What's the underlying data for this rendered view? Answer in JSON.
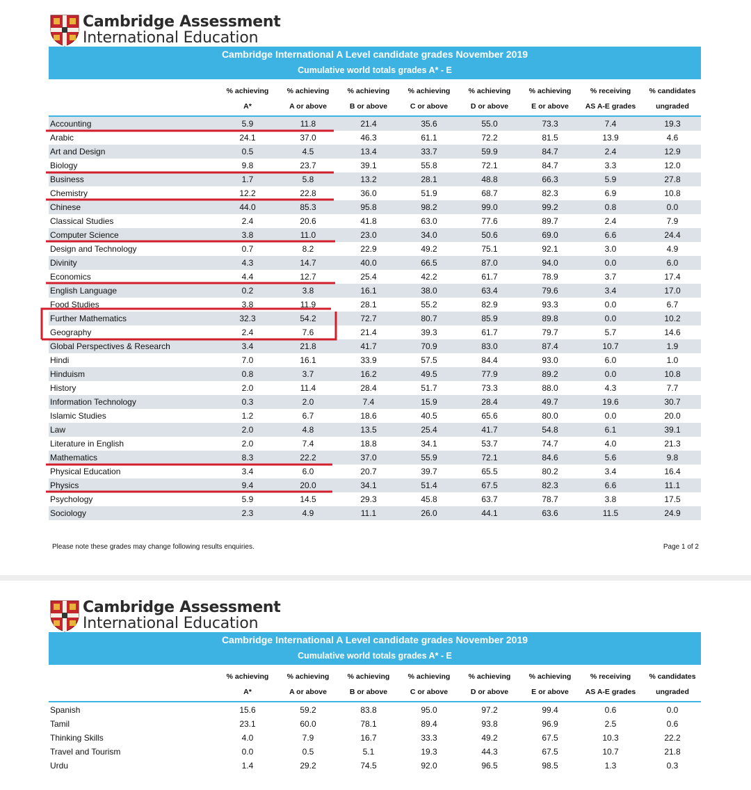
{
  "pages": [
    {
      "logo": {
        "line1": "Cambridge Assessment",
        "line2": "International Education"
      },
      "title": "Cambridge International A Level candidate grades November 2019",
      "subtitle": "Cumulative world totals grades A* - E",
      "headers": [
        [
          "% achieving",
          "A*"
        ],
        [
          "% achieving",
          "A or above"
        ],
        [
          "% achieving",
          "B or above"
        ],
        [
          "% achieving",
          "C or above"
        ],
        [
          "% achieving",
          "D or above"
        ],
        [
          "% achieving",
          "E or above"
        ],
        [
          "% receiving",
          "AS A-E grades"
        ],
        [
          "% candidates",
          "ungraded"
        ]
      ],
      "rows": [
        [
          "Accounting",
          "5.9",
          "11.8",
          "21.4",
          "35.6",
          "55.0",
          "73.3",
          "7.4",
          "19.3"
        ],
        [
          "Arabic",
          "24.1",
          "37.0",
          "46.3",
          "61.1",
          "72.2",
          "81.5",
          "13.9",
          "4.6"
        ],
        [
          "Art and Design",
          "0.5",
          "4.5",
          "13.4",
          "33.7",
          "59.9",
          "84.7",
          "2.4",
          "12.9"
        ],
        [
          "Biology",
          "9.8",
          "23.7",
          "39.1",
          "55.8",
          "72.1",
          "84.7",
          "3.3",
          "12.0"
        ],
        [
          "Business",
          "1.7",
          "5.8",
          "13.2",
          "28.1",
          "48.8",
          "66.3",
          "5.9",
          "27.8"
        ],
        [
          "Chemistry",
          "12.2",
          "22.8",
          "36.0",
          "51.9",
          "68.7",
          "82.3",
          "6.9",
          "10.8"
        ],
        [
          "Chinese",
          "44.0",
          "85.3",
          "95.8",
          "98.2",
          "99.0",
          "99.2",
          "0.8",
          "0.0"
        ],
        [
          "Classical Studies",
          "2.4",
          "20.6",
          "41.8",
          "63.0",
          "77.6",
          "89.7",
          "2.4",
          "7.9"
        ],
        [
          "Computer Science",
          "3.8",
          "11.0",
          "23.0",
          "34.0",
          "50.6",
          "69.0",
          "6.6",
          "24.4"
        ],
        [
          "Design and Technology",
          "0.7",
          "8.2",
          "22.9",
          "49.2",
          "75.1",
          "92.1",
          "3.0",
          "4.9"
        ],
        [
          "Divinity",
          "4.3",
          "14.7",
          "40.0",
          "66.5",
          "87.0",
          "94.0",
          "0.0",
          "6.0"
        ],
        [
          "Economics",
          "4.4",
          "12.7",
          "25.4",
          "42.2",
          "61.7",
          "78.9",
          "3.7",
          "17.4"
        ],
        [
          "English Language",
          "0.2",
          "3.8",
          "16.1",
          "38.0",
          "63.4",
          "79.6",
          "3.4",
          "17.0"
        ],
        [
          "Food Studies",
          "3.8",
          "11.9",
          "28.1",
          "55.2",
          "82.9",
          "93.3",
          "0.0",
          "6.7"
        ],
        [
          "Further Mathematics",
          "32.3",
          "54.2",
          "72.7",
          "80.7",
          "85.9",
          "89.8",
          "0.0",
          "10.2"
        ],
        [
          "Geography",
          "2.4",
          "7.6",
          "21.4",
          "39.3",
          "61.7",
          "79.7",
          "5.7",
          "14.6"
        ],
        [
          "Global Perspectives & Research",
          "3.4",
          "21.8",
          "41.7",
          "70.9",
          "83.0",
          "87.4",
          "10.7",
          "1.9"
        ],
        [
          "Hindi",
          "7.0",
          "16.1",
          "33.9",
          "57.5",
          "84.4",
          "93.0",
          "6.0",
          "1.0"
        ],
        [
          "Hinduism",
          "0.8",
          "3.7",
          "16.2",
          "49.5",
          "77.9",
          "89.2",
          "0.0",
          "10.8"
        ],
        [
          "History",
          "2.0",
          "11.4",
          "28.4",
          "51.7",
          "73.3",
          "88.0",
          "4.3",
          "7.7"
        ],
        [
          "Information Technology",
          "0.3",
          "2.0",
          "7.4",
          "15.9",
          "28.4",
          "49.7",
          "19.6",
          "30.7"
        ],
        [
          "Islamic Studies",
          "1.2",
          "6.7",
          "18.6",
          "40.5",
          "65.6",
          "80.0",
          "0.0",
          "20.0"
        ],
        [
          "Law",
          "2.0",
          "4.8",
          "13.5",
          "25.4",
          "41.7",
          "54.8",
          "6.1",
          "39.1"
        ],
        [
          "Literature in English",
          "2.0",
          "7.4",
          "18.8",
          "34.1",
          "53.7",
          "74.7",
          "4.0",
          "21.3"
        ],
        [
          "Mathematics",
          "8.3",
          "22.2",
          "37.0",
          "55.9",
          "72.1",
          "84.6",
          "5.6",
          "9.8"
        ],
        [
          "Physical Education",
          "3.4",
          "6.0",
          "20.7",
          "39.7",
          "65.5",
          "80.2",
          "3.4",
          "16.4"
        ],
        [
          "Physics",
          "9.4",
          "20.0",
          "34.1",
          "51.4",
          "67.5",
          "82.3",
          "6.6",
          "11.1"
        ],
        [
          "Psychology",
          "5.9",
          "14.5",
          "29.3",
          "45.8",
          "63.7",
          "78.7",
          "3.8",
          "17.5"
        ],
        [
          "Sociology",
          "2.3",
          "4.9",
          "11.1",
          "26.0",
          "44.1",
          "63.6",
          "11.5",
          "24.9"
        ]
      ],
      "note": "Please note these grades may change following results enquiries.",
      "page_number": "Page 1 of 2"
    },
    {
      "logo": {
        "line1": "Cambridge Assessment",
        "line2": "International Education"
      },
      "title": "Cambridge International A Level candidate grades November 2019",
      "subtitle": "Cumulative world totals grades A* - E",
      "headers": [
        [
          "% achieving",
          "A*"
        ],
        [
          "% achieving",
          "A or above"
        ],
        [
          "% achieving",
          "B or above"
        ],
        [
          "% achieving",
          "C or above"
        ],
        [
          "% achieving",
          "D or above"
        ],
        [
          "% achieving",
          "E or above"
        ],
        [
          "% receiving",
          "AS A-E grades"
        ],
        [
          "% candidates",
          "ungraded"
        ]
      ],
      "rows": [
        [
          "Spanish",
          "15.6",
          "59.2",
          "83.8",
          "95.0",
          "97.2",
          "99.4",
          "0.6",
          "0.0"
        ],
        [
          "Tamil",
          "23.1",
          "60.0",
          "78.1",
          "89.4",
          "93.8",
          "96.9",
          "2.5",
          "0.6"
        ],
        [
          "Thinking Skills",
          "4.0",
          "7.9",
          "16.7",
          "33.3",
          "49.2",
          "67.5",
          "10.3",
          "22.2"
        ],
        [
          "Travel and Tourism",
          "0.0",
          "0.5",
          "5.1",
          "19.3",
          "44.3",
          "67.5",
          "10.7",
          "21.8"
        ],
        [
          "Urdu",
          "1.4",
          "29.2",
          "74.5",
          "92.0",
          "96.5",
          "98.5",
          "1.3",
          "0.3"
        ]
      ]
    }
  ]
}
